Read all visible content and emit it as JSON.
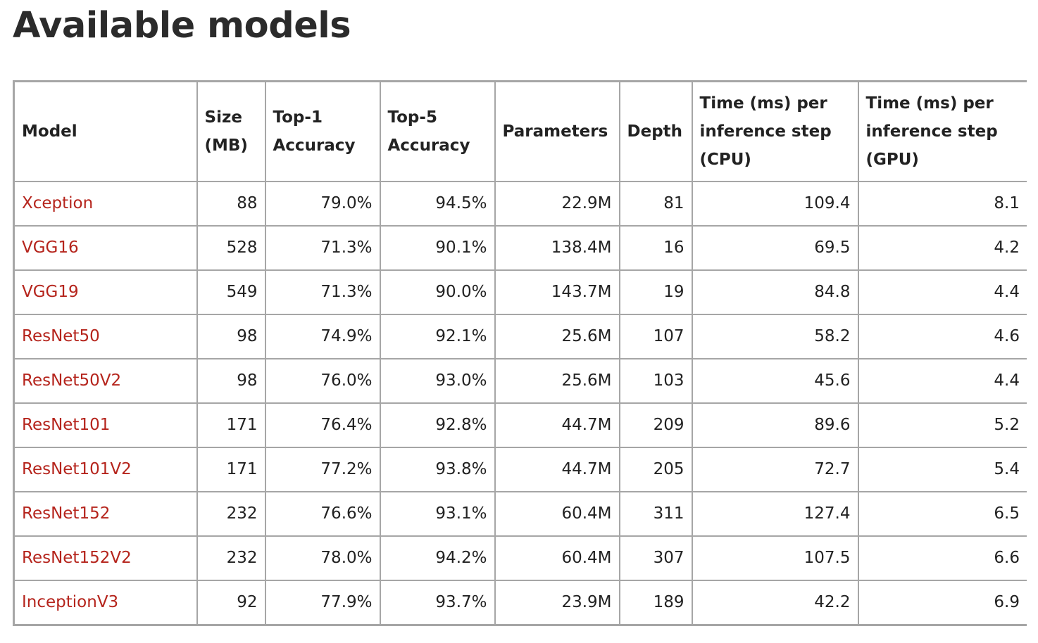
{
  "page": {
    "title": "Available models"
  },
  "table": {
    "headers": [
      "Model",
      "Size (MB)",
      "Top-1 Accuracy",
      "Top-5 Accuracy",
      "Parameters",
      "Depth",
      "Time (ms) per inference step (CPU)",
      "Time (ms) per inference step (GPU)"
    ],
    "rows": [
      [
        "Xception",
        "88",
        "79.0%",
        "94.5%",
        "22.9M",
        "81",
        "109.4",
        "8.1"
      ],
      [
        "VGG16",
        "528",
        "71.3%",
        "90.1%",
        "138.4M",
        "16",
        "69.5",
        "4.2"
      ],
      [
        "VGG19",
        "549",
        "71.3%",
        "90.0%",
        "143.7M",
        "19",
        "84.8",
        "4.4"
      ],
      [
        "ResNet50",
        "98",
        "74.9%",
        "92.1%",
        "25.6M",
        "107",
        "58.2",
        "4.6"
      ],
      [
        "ResNet50V2",
        "98",
        "76.0%",
        "93.0%",
        "25.6M",
        "103",
        "45.6",
        "4.4"
      ],
      [
        "ResNet101",
        "171",
        "76.4%",
        "92.8%",
        "44.7M",
        "209",
        "89.6",
        "5.2"
      ],
      [
        "ResNet101V2",
        "171",
        "77.2%",
        "93.8%",
        "44.7M",
        "205",
        "72.7",
        "5.4"
      ],
      [
        "ResNet152",
        "232",
        "76.6%",
        "93.1%",
        "60.4M",
        "311",
        "127.4",
        "6.5"
      ],
      [
        "ResNet152V2",
        "232",
        "78.0%",
        "94.2%",
        "60.4M",
        "307",
        "107.5",
        "6.6"
      ],
      [
        "InceptionV3",
        "92",
        "77.9%",
        "93.7%",
        "23.9M",
        "189",
        "42.2",
        "6.9"
      ]
    ]
  },
  "colors": {
    "link": "#b5241c",
    "border": "#a6a6a6",
    "text": "#222222"
  }
}
